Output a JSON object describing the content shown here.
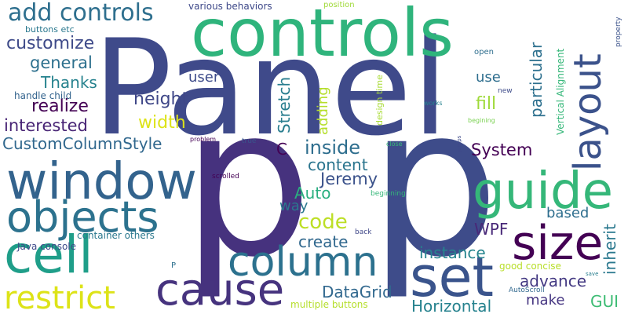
{
  "words": [
    {
      "text": "Panel",
      "color": "#3f4a8a"
    },
    {
      "text": "p",
      "color": "#46327e"
    },
    {
      "text": "p",
      "color": "#3e4c8a"
    },
    {
      "text": "controls",
      "color": "#2fb47c"
    },
    {
      "text": "window",
      "color": "#33638d"
    },
    {
      "text": "objects",
      "color": "#2c728e"
    },
    {
      "text": "cell",
      "color": "#1f9e89"
    },
    {
      "text": "guide",
      "color": "#35b779"
    },
    {
      "text": "column",
      "color": "#2c718e"
    },
    {
      "text": "set",
      "color": "#3a548c"
    },
    {
      "text": "size",
      "color": "#440154"
    },
    {
      "text": "cause",
      "color": "#46337e"
    },
    {
      "text": "restrict",
      "color": "#dde318"
    },
    {
      "text": "layout",
      "color": "#3b528b"
    },
    {
      "text": "add controls",
      "color": "#2e6f8e"
    },
    {
      "text": "customize",
      "color": "#3e4a89"
    },
    {
      "text": "general",
      "color": "#2d708e"
    },
    {
      "text": "Thanks",
      "color": "#26828e"
    },
    {
      "text": "realize",
      "color": "#440154"
    },
    {
      "text": "interested",
      "color": "#482475"
    },
    {
      "text": "CustomColumnStyle",
      "color": "#31688e"
    },
    {
      "text": "height",
      "color": "#3f4788"
    },
    {
      "text": "width",
      "color": "#dde318"
    },
    {
      "text": "inside",
      "color": "#2e6e8e"
    },
    {
      "text": "content",
      "color": "#2b758e"
    },
    {
      "text": "Jeremy",
      "color": "#3b528b"
    },
    {
      "text": "Auto",
      "color": "#29af7f"
    },
    {
      "text": "way",
      "color": "#2a788e"
    },
    {
      "text": "code",
      "color": "#bddf26"
    },
    {
      "text": "create",
      "color": "#31688e"
    },
    {
      "text": "System",
      "color": "#440154"
    },
    {
      "text": "based",
      "color": "#2e6e8e"
    },
    {
      "text": "WPF",
      "color": "#482878"
    },
    {
      "text": "instance",
      "color": "#25848e"
    },
    {
      "text": "advance",
      "color": "#443a83"
    },
    {
      "text": "make",
      "color": "#453581"
    },
    {
      "text": "GUI",
      "color": "#3dbc74"
    },
    {
      "text": "DataGrid",
      "color": "#31688e"
    },
    {
      "text": "Horizontal",
      "color": "#26828e"
    },
    {
      "text": "user",
      "color": "#3e4c8a"
    },
    {
      "text": "use",
      "color": "#2e6e8e"
    },
    {
      "text": "fill",
      "color": "#9fda3a"
    },
    {
      "text": "Stretch",
      "color": "#287d8e"
    },
    {
      "text": "adding",
      "color": "#b5de2b"
    },
    {
      "text": "C",
      "color": "#440154"
    },
    {
      "text": "particular",
      "color": "#2d708e"
    },
    {
      "text": "inherit",
      "color": "#2a788e"
    },
    {
      "text": "various behaviors",
      "color": "#3e4989"
    },
    {
      "text": "buttons etc",
      "color": "#2a788e"
    },
    {
      "text": "handle child",
      "color": "#33638d"
    },
    {
      "text": "position",
      "color": "#a0da39"
    },
    {
      "text": "design time",
      "color": "#a8db34"
    },
    {
      "text": "Vertical Alignment",
      "color": "#35b779"
    },
    {
      "text": "open",
      "color": "#2e6e8e"
    },
    {
      "text": "new",
      "color": "#3e4c8a"
    },
    {
      "text": "works",
      "color": "#26828e"
    },
    {
      "text": "begining",
      "color": "#7ad151"
    },
    {
      "text": "property",
      "color": "#3b528b"
    },
    {
      "text": "problem",
      "color": "#440154"
    },
    {
      "text": "true",
      "color": "#39558c"
    },
    {
      "text": "close",
      "color": "#37b878"
    },
    {
      "text": "jumps",
      "color": "#3e4989"
    },
    {
      "text": "scrolled",
      "color": "#440154"
    },
    {
      "text": "beginning",
      "color": "#34b679"
    },
    {
      "text": "container others",
      "color": "#2a788e"
    },
    {
      "text": "Java console",
      "color": "#3e4989"
    },
    {
      "text": "P",
      "color": "#2d708e"
    },
    {
      "text": "back",
      "color": "#3f4788"
    },
    {
      "text": "good concise",
      "color": "#b8de29"
    },
    {
      "text": "save",
      "color": "#287d8e"
    },
    {
      "text": "AutoScroll",
      "color": "#31688e"
    },
    {
      "text": "multiple buttons",
      "color": "#b5de2b"
    }
  ]
}
